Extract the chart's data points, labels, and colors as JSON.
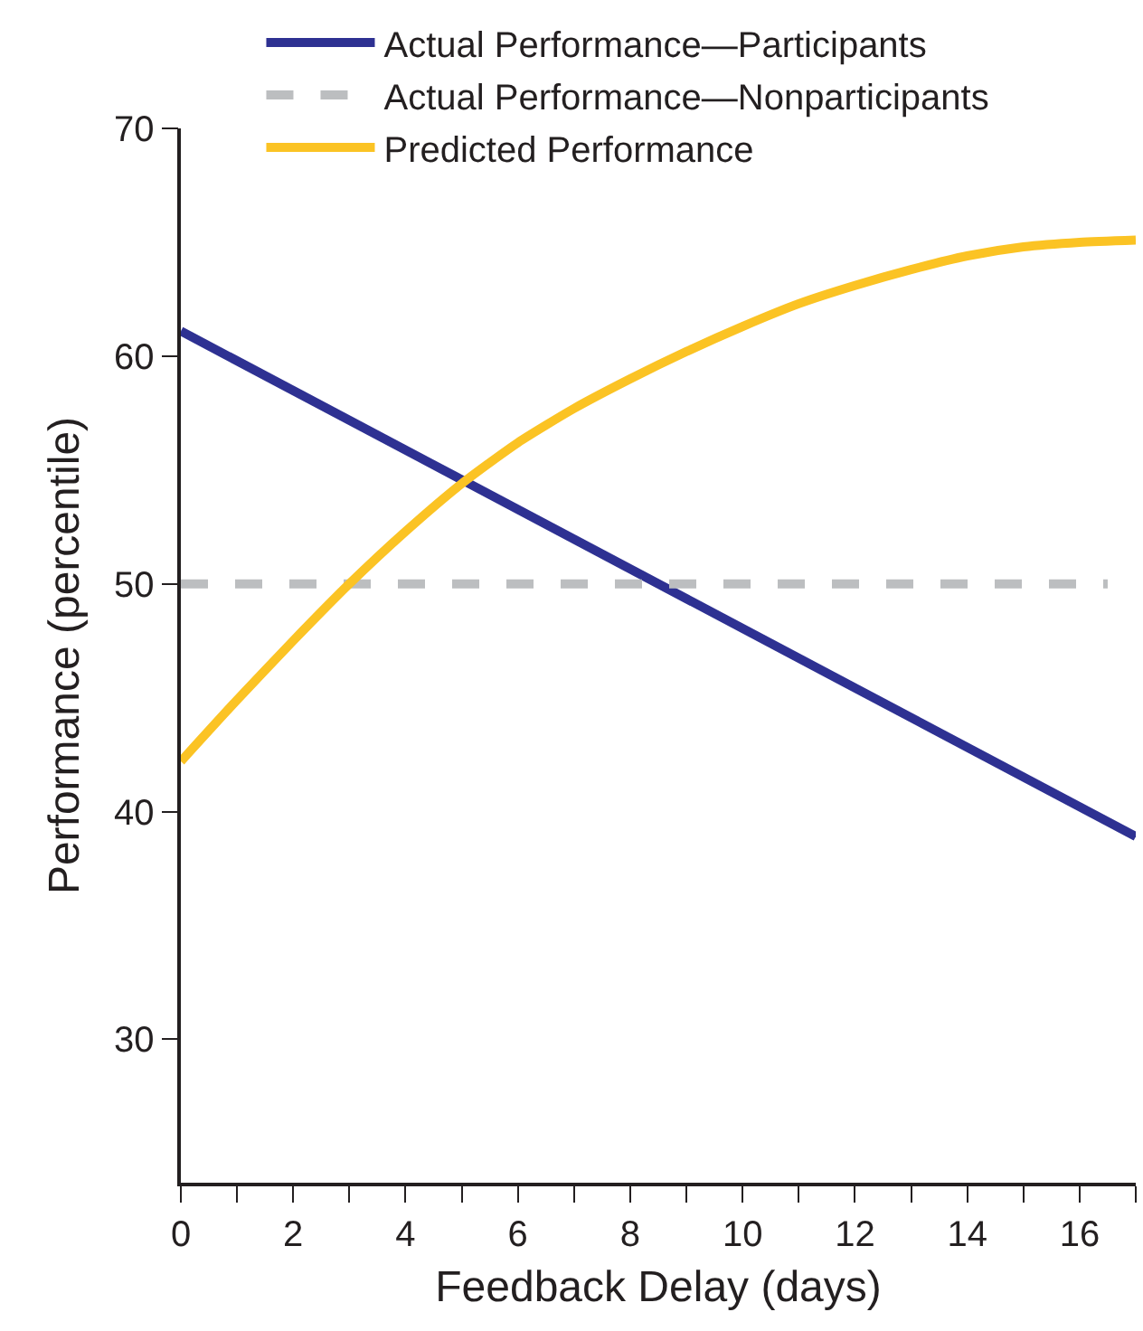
{
  "chart_data": {
    "type": "line",
    "xlabel": "Feedback Delay (days)",
    "ylabel": "Performance (percentile)",
    "xlim": [
      0,
      17
    ],
    "xticks": [
      0,
      {
        "value": 1,
        "label": null
      },
      2,
      {
        "value": 3,
        "label": null
      },
      4,
      {
        "value": 5,
        "label": null
      },
      6,
      {
        "value": 7,
        "label": null
      },
      8,
      {
        "value": 9,
        "label": null
      },
      10,
      {
        "value": 11,
        "label": null
      },
      12,
      {
        "value": 13,
        "label": null
      },
      14,
      {
        "value": 15,
        "label": null
      },
      16,
      {
        "value": 17,
        "label": null
      }
    ],
    "ylim": [
      23.7,
      70
    ],
    "yticks": [
      30,
      40,
      50,
      60,
      70
    ],
    "grid": false,
    "legend": "top left",
    "marker": "none",
    "series": [
      {
        "name": "Actual Performance—Participants",
        "color": "#2e3192",
        "x": [
          0,
          17
        ],
        "values": [
          61.1,
          38.9
        ]
      },
      {
        "name": "Actual Performance—Nonparticipants",
        "color": "#bcbec0",
        "line_style": "dashed",
        "x": [
          0,
          16.5
        ],
        "values": [
          50,
          50
        ]
      },
      {
        "name": "Predicted Performance",
        "color": "#fbc324",
        "x": [
          0,
          1,
          2,
          3,
          4,
          5,
          6,
          7,
          8,
          9,
          10,
          11,
          12,
          13,
          14,
          15,
          16,
          17
        ],
        "values": [
          42.2,
          44.9,
          47.5,
          50.0,
          52.3,
          54.4,
          56.2,
          57.7,
          59.0,
          60.2,
          61.3,
          62.3,
          63.1,
          63.8,
          64.4,
          64.8,
          65.0,
          65.1
        ]
      }
    ]
  }
}
